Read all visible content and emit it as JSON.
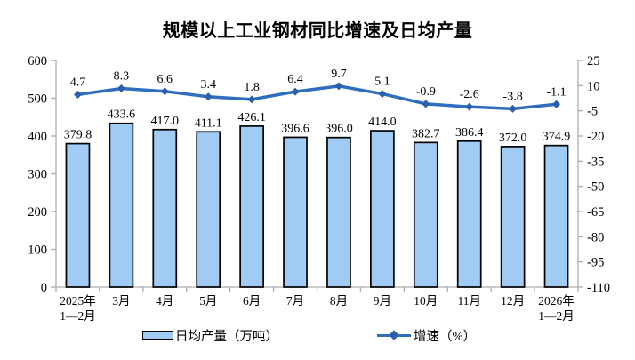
{
  "chart_data": {
    "type": "combo-bar-line",
    "title": "规模以上工业钢材同比增速及日均产量",
    "categories": [
      "2025年\n1—2月",
      "3月",
      "4月",
      "5月",
      "6月",
      "7月",
      "8月",
      "9月",
      "10月",
      "11月",
      "12月",
      "2026年\n1—2月"
    ],
    "series": [
      {
        "name": "日均产量（万吨）",
        "type": "bar",
        "axis": "left",
        "values": [
          379.8,
          433.6,
          417.0,
          411.1,
          426.1,
          396.6,
          396.0,
          414.0,
          382.7,
          386.4,
          372.0,
          374.9
        ],
        "fill_color": "#A0CBF5",
        "border_color": "#000000"
      },
      {
        "name": "增速（%）",
        "type": "line",
        "axis": "right",
        "values": [
          4.7,
          8.3,
          6.6,
          3.4,
          1.8,
          6.4,
          9.7,
          5.1,
          -0.9,
          -2.6,
          -3.8,
          -1.1
        ],
        "line_color": "#2F6EBE",
        "marker_color": "#2B5FAC",
        "marker": "diamond"
      }
    ],
    "left_axis": {
      "min": 0,
      "max": 600,
      "ticks": [
        "0",
        "100",
        "200",
        "300",
        "400",
        "500",
        "600"
      ]
    },
    "right_axis": {
      "min": -110,
      "max": 25,
      "ticks": [
        "25",
        "10",
        "-5",
        "-20",
        "-35",
        "-50",
        "-65",
        "-80",
        "-95",
        "-110"
      ]
    },
    "grid": false,
    "legend_position": "bottom",
    "axis_color": "#ADADAD",
    "text_color": "#000000"
  }
}
